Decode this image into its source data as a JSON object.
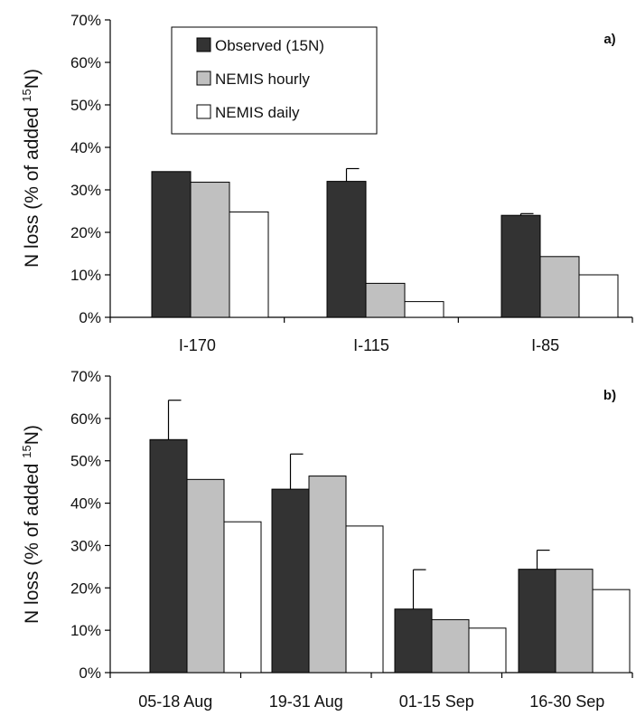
{
  "chart_data": [
    {
      "type": "bar",
      "panel_label": "a)",
      "ylabel": "N loss  (% of added ",
      "ylabel_sup": "15",
      "ylabel_end": "N)",
      "ylim": [
        0,
        70
      ],
      "yticks": [
        "0%",
        "10%",
        "20%",
        "30%",
        "40%",
        "50%",
        "60%",
        "70%"
      ],
      "categories": [
        "I-170",
        "I-115",
        "I-85"
      ],
      "legend": {
        "placement": "top-left",
        "entries": [
          "Observed (15N)",
          "NEMIS hourly",
          "NEMIS daily"
        ]
      },
      "series": [
        {
          "name": "Observed (15N)",
          "color": "#333333",
          "values": [
            34.3,
            32.0,
            24.0
          ],
          "error_upper": [
            0,
            3.0,
            0.4
          ]
        },
        {
          "name": "NEMIS hourly",
          "color": "#c0c0c0",
          "values": [
            31.8,
            8.0,
            14.3
          ]
        },
        {
          "name": "NEMIS daily",
          "color": "#ffffff",
          "values": [
            24.8,
            3.7,
            10.0
          ]
        }
      ]
    },
    {
      "type": "bar",
      "panel_label": "b)",
      "ylabel": "N loss  (% of added ",
      "ylabel_sup": "15",
      "ylabel_end": "N)",
      "ylim": [
        0,
        70
      ],
      "yticks": [
        "0%",
        "10%",
        "20%",
        "30%",
        "40%",
        "50%",
        "60%",
        "70%"
      ],
      "categories": [
        "05-18 Aug",
        "19-31 Aug",
        "01-15 Sep",
        "16-30 Sep"
      ],
      "series": [
        {
          "name": "Observed (15N)",
          "color": "#333333",
          "values": [
            55.0,
            43.3,
            15.0,
            24.4
          ],
          "error_upper": [
            9.3,
            8.3,
            9.3,
            4.5
          ]
        },
        {
          "name": "NEMIS hourly",
          "color": "#c0c0c0",
          "values": [
            45.6,
            46.4,
            12.5,
            24.4
          ]
        },
        {
          "name": "NEMIS daily",
          "color": "#ffffff",
          "values": [
            35.6,
            34.6,
            10.5,
            19.6
          ]
        }
      ]
    }
  ]
}
